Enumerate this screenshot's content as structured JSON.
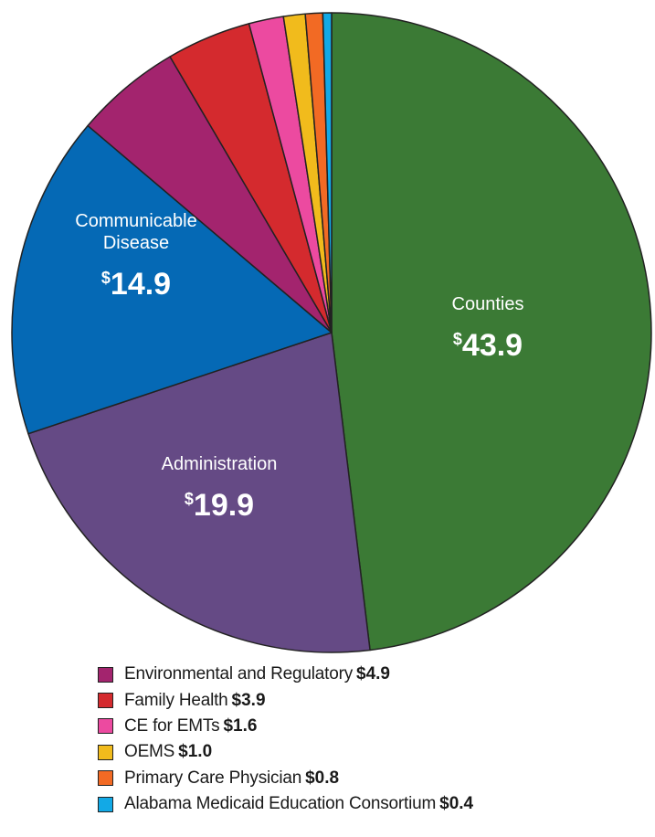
{
  "chart_data": {
    "type": "pie",
    "currency_symbol": "$",
    "slices": [
      {
        "label": "Counties",
        "value": 43.9,
        "display": "43.9",
        "color": "#3b7a35",
        "labeled": true,
        "legend": false
      },
      {
        "label": "Administration",
        "value": 19.9,
        "display": "19.9",
        "color": "#654a85",
        "labeled": true,
        "legend": false
      },
      {
        "label": "Communicable Disease",
        "label_lines": [
          "Communicable",
          "Disease"
        ],
        "value": 14.9,
        "display": "14.9",
        "color": "#0569b5",
        "labeled": true,
        "legend": false
      },
      {
        "label": "Environmental and Regulatory",
        "value": 4.9,
        "display": "$4.9",
        "color": "#a3246e",
        "labeled": false,
        "legend": true
      },
      {
        "label": "Family Health",
        "value": 3.9,
        "display": "$3.9",
        "color": "#d42a2e",
        "labeled": false,
        "legend": true
      },
      {
        "label": "CE for EMTs",
        "value": 1.6,
        "display": "$1.6",
        "color": "#ec4aa0",
        "labeled": false,
        "legend": true
      },
      {
        "label": "OEMS",
        "value": 1.0,
        "display": "$1.0",
        "color": "#f1bb1c",
        "labeled": false,
        "legend": true
      },
      {
        "label": "Primary Care Physician",
        "value": 0.8,
        "display": "$0.8",
        "color": "#f26a24",
        "labeled": false,
        "legend": true
      },
      {
        "label": "Alabama Medicaid Education Consortium",
        "value": 0.4,
        "display": "$0.4",
        "color": "#12a9e6",
        "labeled": false,
        "legend": true
      }
    ],
    "start_angle": "12 o'clock",
    "direction": "clockwise",
    "legend_position": "bottom"
  }
}
